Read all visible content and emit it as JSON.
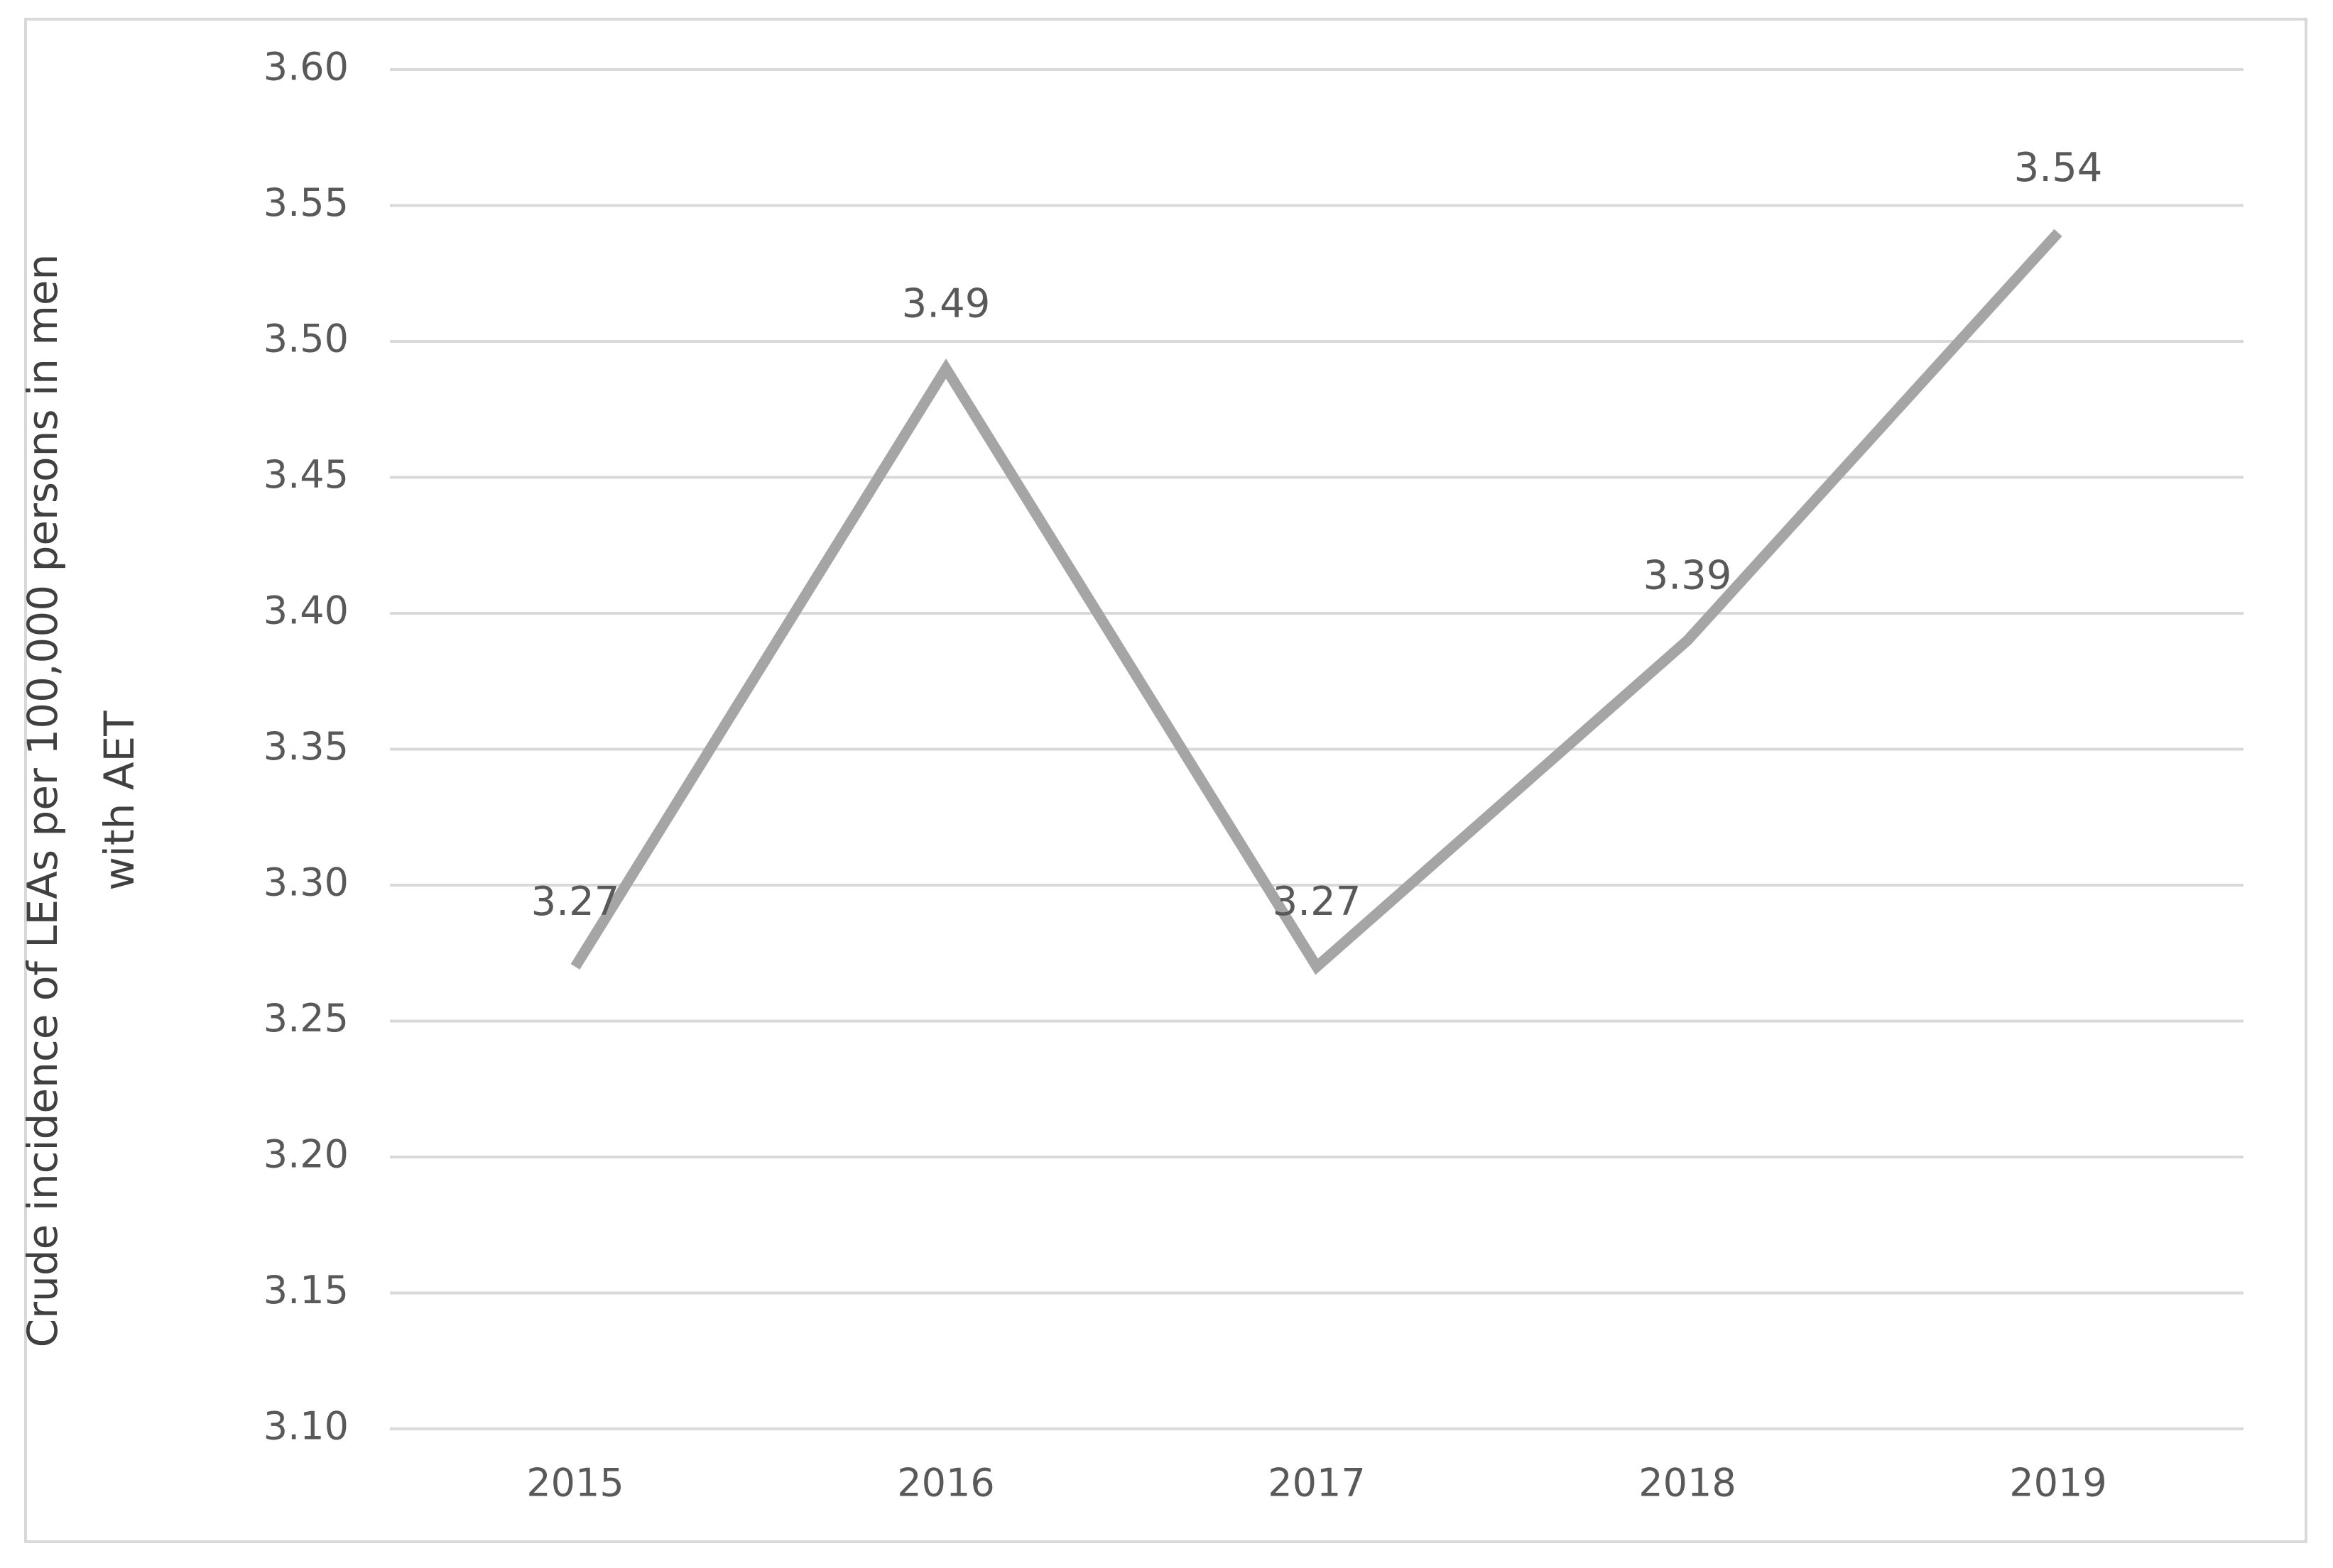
{
  "chart_data": {
    "type": "line",
    "y_label": "Crude incidence of LEAs per 100,000 persons in men with AET",
    "categories": [
      "2015",
      "2016",
      "2017",
      "2018",
      "2019"
    ],
    "series": [
      {
        "color": "#a5a5a5",
        "values": [
          3.27,
          3.49,
          3.27,
          3.39,
          3.54
        ]
      }
    ],
    "ylim": [
      3.1,
      3.6
    ],
    "yticks": [
      {
        "value": 3.1,
        "label": "3.10"
      },
      {
        "value": 3.15,
        "label": "3.15"
      },
      {
        "value": 3.2,
        "label": "3.20"
      },
      {
        "value": 3.25,
        "label": "3.25"
      },
      {
        "value": 3.3,
        "label": "3.30"
      },
      {
        "value": 3.35,
        "label": "3.35"
      },
      {
        "value": 3.4,
        "label": "3.40"
      },
      {
        "value": 3.45,
        "label": "3.45"
      },
      {
        "value": 3.5,
        "label": "3.50"
      },
      {
        "value": 3.55,
        "label": "3.55"
      },
      {
        "value": 3.6,
        "label": "3.60"
      }
    ],
    "grid": true
  }
}
